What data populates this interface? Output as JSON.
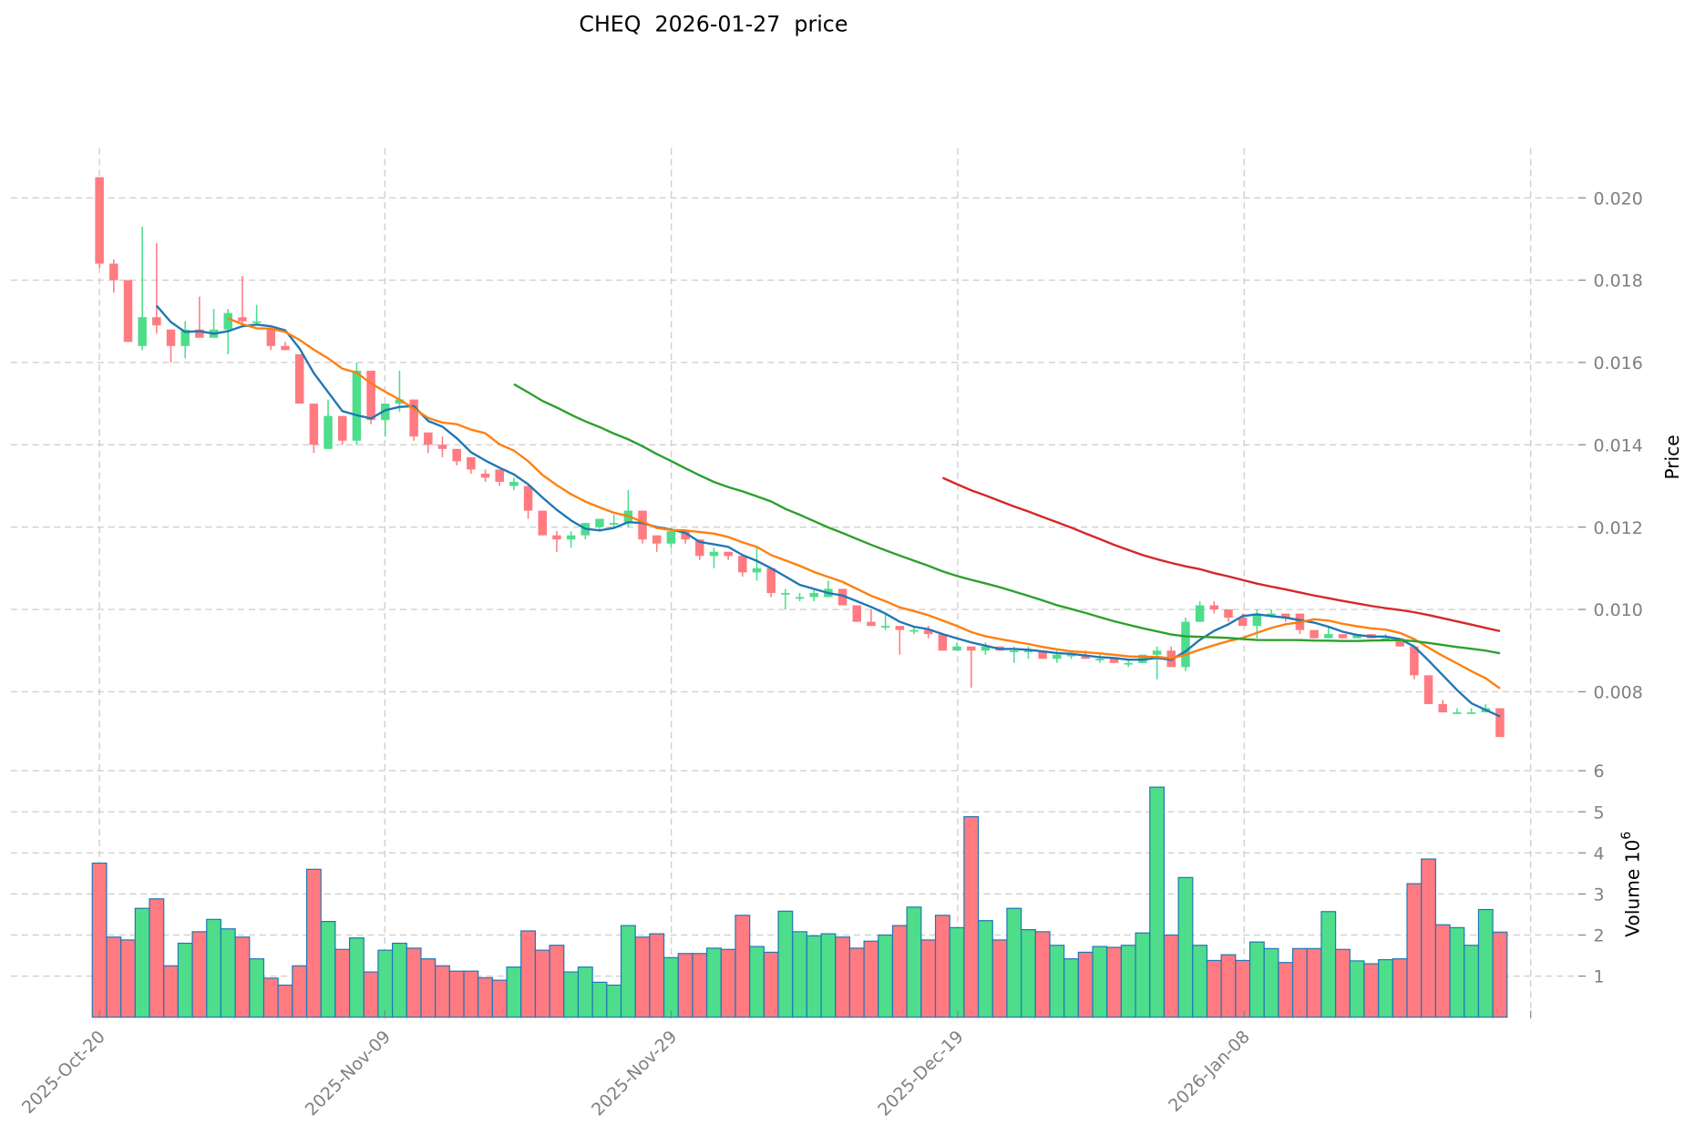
{
  "chart_data": {
    "type": "candlestick",
    "title": "CHEQ  2026-01-27  price",
    "ticker": "CHEQ",
    "date": "2026-01-27",
    "ylabel": "Price",
    "volume_label": "Volume  10^6",
    "ylim": [
      0.0068,
      0.0212
    ],
    "volume_ylim": [
      0,
      6
    ],
    "grid": true,
    "x_tick_labels": [
      "2025-Oct-20",
      "2025-Nov-09",
      "2025-Nov-29",
      "2025-Dec-19",
      "2026-Jan-08"
    ],
    "y_tick_labels": [
      "0.020",
      "0.018",
      "0.016",
      "0.014",
      "0.012",
      "0.010",
      "0.008"
    ],
    "volume_tick_labels": [
      "6",
      "5",
      "4",
      "3",
      "2",
      "1"
    ],
    "colors": {
      "up": "#4ddd8b",
      "down": "#ff7b81",
      "edge": "#1f77b4",
      "ma_blue": "#1f77b4",
      "ma_orange": "#ff7f0e",
      "ma_green": "#2ca02c",
      "ma_red": "#d62728"
    },
    "candles": [
      {
        "o": 0.0205,
        "h": 0.0205,
        "l": 0.0183,
        "c": 0.0184,
        "v": 3.75
      },
      {
        "o": 0.0184,
        "h": 0.0185,
        "l": 0.0177,
        "c": 0.018,
        "v": 1.95
      },
      {
        "o": 0.018,
        "h": 0.018,
        "l": 0.0165,
        "c": 0.0165,
        "v": 1.88
      },
      {
        "o": 0.0164,
        "h": 0.0193,
        "l": 0.0163,
        "c": 0.0171,
        "v": 2.65
      },
      {
        "o": 0.0171,
        "h": 0.0189,
        "l": 0.0167,
        "c": 0.0169,
        "v": 2.88
      },
      {
        "o": 0.0168,
        "h": 0.0168,
        "l": 0.016,
        "c": 0.0164,
        "v": 1.25
      },
      {
        "o": 0.0164,
        "h": 0.017,
        "l": 0.0161,
        "c": 0.0168,
        "v": 1.8
      },
      {
        "o": 0.0168,
        "h": 0.0176,
        "l": 0.0166,
        "c": 0.0166,
        "v": 2.08
      },
      {
        "o": 0.0166,
        "h": 0.0173,
        "l": 0.0166,
        "c": 0.0168,
        "v": 2.38
      },
      {
        "o": 0.0168,
        "h": 0.0173,
        "l": 0.0162,
        "c": 0.0172,
        "v": 2.15
      },
      {
        "o": 0.0171,
        "h": 0.0181,
        "l": 0.0169,
        "c": 0.017,
        "v": 1.95
      },
      {
        "o": 0.017,
        "h": 0.0174,
        "l": 0.0169,
        "c": 0.017,
        "v": 1.42
      },
      {
        "o": 0.0168,
        "h": 0.0168,
        "l": 0.0163,
        "c": 0.0164,
        "v": 0.95
      },
      {
        "o": 0.0164,
        "h": 0.0165,
        "l": 0.0163,
        "c": 0.0163,
        "v": 0.78
      },
      {
        "o": 0.0162,
        "h": 0.0162,
        "l": 0.015,
        "c": 0.015,
        "v": 1.25
      },
      {
        "o": 0.015,
        "h": 0.015,
        "l": 0.0138,
        "c": 0.014,
        "v": 3.6
      },
      {
        "o": 0.0139,
        "h": 0.0151,
        "l": 0.0139,
        "c": 0.0147,
        "v": 2.33
      },
      {
        "o": 0.0147,
        "h": 0.0147,
        "l": 0.014,
        "c": 0.0141,
        "v": 1.65
      },
      {
        "o": 0.0141,
        "h": 0.016,
        "l": 0.014,
        "c": 0.0158,
        "v": 1.93
      },
      {
        "o": 0.0158,
        "h": 0.0158,
        "l": 0.0145,
        "c": 0.0146,
        "v": 1.1
      },
      {
        "o": 0.0146,
        "h": 0.015,
        "l": 0.0142,
        "c": 0.015,
        "v": 1.63
      },
      {
        "o": 0.015,
        "h": 0.0158,
        "l": 0.0148,
        "c": 0.0151,
        "v": 1.8
      },
      {
        "o": 0.0151,
        "h": 0.0151,
        "l": 0.0141,
        "c": 0.0142,
        "v": 1.68
      },
      {
        "o": 0.0143,
        "h": 0.0143,
        "l": 0.0138,
        "c": 0.014,
        "v": 1.42
      },
      {
        "o": 0.014,
        "h": 0.0142,
        "l": 0.0137,
        "c": 0.0139,
        "v": 1.25
      },
      {
        "o": 0.0139,
        "h": 0.0139,
        "l": 0.0135,
        "c": 0.0136,
        "v": 1.12
      },
      {
        "o": 0.0137,
        "h": 0.0137,
        "l": 0.0133,
        "c": 0.0134,
        "v": 1.12
      },
      {
        "o": 0.0133,
        "h": 0.0134,
        "l": 0.0131,
        "c": 0.0132,
        "v": 0.96
      },
      {
        "o": 0.0134,
        "h": 0.0134,
        "l": 0.013,
        "c": 0.0131,
        "v": 0.9
      },
      {
        "o": 0.013,
        "h": 0.0132,
        "l": 0.0129,
        "c": 0.0131,
        "v": 1.22
      },
      {
        "o": 0.013,
        "h": 0.013,
        "l": 0.0122,
        "c": 0.0124,
        "v": 2.1
      },
      {
        "o": 0.0124,
        "h": 0.0124,
        "l": 0.0118,
        "c": 0.0118,
        "v": 1.63
      },
      {
        "o": 0.0118,
        "h": 0.0119,
        "l": 0.0114,
        "c": 0.0117,
        "v": 1.75
      },
      {
        "o": 0.0117,
        "h": 0.0119,
        "l": 0.0115,
        "c": 0.0118,
        "v": 1.1
      },
      {
        "o": 0.0118,
        "h": 0.0121,
        "l": 0.0117,
        "c": 0.0121,
        "v": 1.22
      },
      {
        "o": 0.012,
        "h": 0.0122,
        "l": 0.0119,
        "c": 0.0122,
        "v": 0.85
      },
      {
        "o": 0.0121,
        "h": 0.0123,
        "l": 0.012,
        "c": 0.0121,
        "v": 0.78
      },
      {
        "o": 0.0121,
        "h": 0.0129,
        "l": 0.012,
        "c": 0.0124,
        "v": 2.23
      },
      {
        "o": 0.0124,
        "h": 0.0124,
        "l": 0.0116,
        "c": 0.0117,
        "v": 1.95
      },
      {
        "o": 0.0118,
        "h": 0.0118,
        "l": 0.0114,
        "c": 0.0116,
        "v": 2.03
      },
      {
        "o": 0.0116,
        "h": 0.0119,
        "l": 0.0115,
        "c": 0.0119,
        "v": 1.45
      },
      {
        "o": 0.0119,
        "h": 0.0119,
        "l": 0.0116,
        "c": 0.0117,
        "v": 1.55
      },
      {
        "o": 0.0117,
        "h": 0.0117,
        "l": 0.0112,
        "c": 0.0113,
        "v": 1.55
      },
      {
        "o": 0.0113,
        "h": 0.0115,
        "l": 0.011,
        "c": 0.0114,
        "v": 1.68
      },
      {
        "o": 0.0114,
        "h": 0.0114,
        "l": 0.0112,
        "c": 0.0113,
        "v": 1.65
      },
      {
        "o": 0.0113,
        "h": 0.0113,
        "l": 0.0108,
        "c": 0.0109,
        "v": 2.48
      },
      {
        "o": 0.0109,
        "h": 0.0115,
        "l": 0.0107,
        "c": 0.011,
        "v": 1.72
      },
      {
        "o": 0.011,
        "h": 0.011,
        "l": 0.0103,
        "c": 0.0104,
        "v": 1.58
      },
      {
        "o": 0.0104,
        "h": 0.0105,
        "l": 0.01,
        "c": 0.0104,
        "v": 2.58
      },
      {
        "o": 0.0103,
        "h": 0.0104,
        "l": 0.0102,
        "c": 0.0103,
        "v": 2.08
      },
      {
        "o": 0.0103,
        "h": 0.0105,
        "l": 0.0102,
        "c": 0.0104,
        "v": 1.98
      },
      {
        "o": 0.0103,
        "h": 0.0107,
        "l": 0.0103,
        "c": 0.0105,
        "v": 2.03
      },
      {
        "o": 0.0105,
        "h": 0.0105,
        "l": 0.0101,
        "c": 0.0101,
        "v": 1.95
      },
      {
        "o": 0.0101,
        "h": 0.0101,
        "l": 0.0097,
        "c": 0.0097,
        "v": 1.68
      },
      {
        "o": 0.0097,
        "h": 0.01,
        "l": 0.0096,
        "c": 0.0096,
        "v": 1.85
      },
      {
        "o": 0.0096,
        "h": 0.0099,
        "l": 0.0095,
        "c": 0.0096,
        "v": 2.0
      },
      {
        "o": 0.0096,
        "h": 0.0096,
        "l": 0.0089,
        "c": 0.0095,
        "v": 2.23
      },
      {
        "o": 0.0095,
        "h": 0.0096,
        "l": 0.0094,
        "c": 0.0095,
        "v": 2.68
      },
      {
        "o": 0.0095,
        "h": 0.0096,
        "l": 0.0093,
        "c": 0.0094,
        "v": 1.88
      },
      {
        "o": 0.0094,
        "h": 0.0094,
        "l": 0.009,
        "c": 0.009,
        "v": 2.48
      },
      {
        "o": 0.009,
        "h": 0.0092,
        "l": 0.009,
        "c": 0.0091,
        "v": 2.18
      },
      {
        "o": 0.0091,
        "h": 0.0091,
        "l": 0.0081,
        "c": 0.009,
        "v": 4.88
      },
      {
        "o": 0.009,
        "h": 0.0092,
        "l": 0.0089,
        "c": 0.0091,
        "v": 2.35
      },
      {
        "o": 0.0091,
        "h": 0.0091,
        "l": 0.009,
        "c": 0.009,
        "v": 1.88
      },
      {
        "o": 0.009,
        "h": 0.0091,
        "l": 0.0087,
        "c": 0.009,
        "v": 2.65
      },
      {
        "o": 0.009,
        "h": 0.0091,
        "l": 0.0088,
        "c": 0.009,
        "v": 2.13
      },
      {
        "o": 0.009,
        "h": 0.009,
        "l": 0.0088,
        "c": 0.0088,
        "v": 2.08
      },
      {
        "o": 0.0088,
        "h": 0.009,
        "l": 0.0087,
        "c": 0.0089,
        "v": 1.75
      },
      {
        "o": 0.0089,
        "h": 0.0089,
        "l": 0.0088,
        "c": 0.0089,
        "v": 1.42
      },
      {
        "o": 0.0089,
        "h": 0.009,
        "l": 0.0088,
        "c": 0.0088,
        "v": 1.58
      },
      {
        "o": 0.0088,
        "h": 0.0089,
        "l": 0.0087,
        "c": 0.0088,
        "v": 1.72
      },
      {
        "o": 0.0088,
        "h": 0.0088,
        "l": 0.0087,
        "c": 0.0087,
        "v": 1.7
      },
      {
        "o": 0.0087,
        "h": 0.0088,
        "l": 0.0086,
        "c": 0.0087,
        "v": 1.75
      },
      {
        "o": 0.0087,
        "h": 0.0089,
        "l": 0.0087,
        "c": 0.0089,
        "v": 2.05
      },
      {
        "o": 0.0089,
        "h": 0.0091,
        "l": 0.0083,
        "c": 0.009,
        "v": 5.6
      },
      {
        "o": 0.009,
        "h": 0.0091,
        "l": 0.0086,
        "c": 0.0086,
        "v": 2.0
      },
      {
        "o": 0.0086,
        "h": 0.0098,
        "l": 0.0085,
        "c": 0.0097,
        "v": 3.4
      },
      {
        "o": 0.0097,
        "h": 0.0102,
        "l": 0.0097,
        "c": 0.0101,
        "v": 1.75
      },
      {
        "o": 0.0101,
        "h": 0.0102,
        "l": 0.0099,
        "c": 0.01,
        "v": 1.38
      },
      {
        "o": 0.01,
        "h": 0.01,
        "l": 0.0097,
        "c": 0.0098,
        "v": 1.52
      },
      {
        "o": 0.0098,
        "h": 0.0099,
        "l": 0.0096,
        "c": 0.0096,
        "v": 1.38
      },
      {
        "o": 0.0096,
        "h": 0.01,
        "l": 0.0093,
        "c": 0.0099,
        "v": 1.83
      },
      {
        "o": 0.0099,
        "h": 0.01,
        "l": 0.0098,
        "c": 0.0099,
        "v": 1.67
      },
      {
        "o": 0.0099,
        "h": 0.0099,
        "l": 0.0097,
        "c": 0.0098,
        "v": 1.33
      },
      {
        "o": 0.0099,
        "h": 0.0099,
        "l": 0.0094,
        "c": 0.0095,
        "v": 1.67
      },
      {
        "o": 0.0095,
        "h": 0.0095,
        "l": 0.0093,
        "c": 0.0093,
        "v": 1.67
      },
      {
        "o": 0.0093,
        "h": 0.0096,
        "l": 0.0093,
        "c": 0.0094,
        "v": 2.57
      },
      {
        "o": 0.0094,
        "h": 0.0094,
        "l": 0.0093,
        "c": 0.0093,
        "v": 1.65
      },
      {
        "o": 0.0093,
        "h": 0.0094,
        "l": 0.0093,
        "c": 0.0094,
        "v": 1.37
      },
      {
        "o": 0.0094,
        "h": 0.0094,
        "l": 0.0093,
        "c": 0.0093,
        "v": 1.3
      },
      {
        "o": 0.0093,
        "h": 0.0094,
        "l": 0.0093,
        "c": 0.0093,
        "v": 1.4
      },
      {
        "o": 0.0093,
        "h": 0.0093,
        "l": 0.0091,
        "c": 0.0091,
        "v": 1.42
      },
      {
        "o": 0.0091,
        "h": 0.0091,
        "l": 0.0083,
        "c": 0.0084,
        "v": 3.25
      },
      {
        "o": 0.0084,
        "h": 0.0084,
        "l": 0.0077,
        "c": 0.0077,
        "v": 3.85
      },
      {
        "o": 0.0077,
        "h": 0.0078,
        "l": 0.0075,
        "c": 0.0075,
        "v": 2.25
      },
      {
        "o": 0.0075,
        "h": 0.0076,
        "l": 0.0075,
        "c": 0.0075,
        "v": 2.18
      },
      {
        "o": 0.0075,
        "h": 0.0076,
        "l": 0.0075,
        "c": 0.0075,
        "v": 1.75
      },
      {
        "o": 0.0075,
        "h": 0.0077,
        "l": 0.0075,
        "c": 0.0076,
        "v": 2.62
      },
      {
        "o": 0.0076,
        "h": 0.0076,
        "l": 0.0069,
        "c": 0.0069,
        "v": 2.07
      }
    ],
    "moving_averages": [
      {
        "name": "MA blue (short)",
        "color": "#1f77b4",
        "start": 4
      },
      {
        "name": "MA orange",
        "color": "#ff7f0e",
        "start": 9
      },
      {
        "name": "MA green",
        "color": "#2ca02c",
        "start": 29
      },
      {
        "name": "MA red",
        "color": "#d62728",
        "start": 59
      }
    ]
  }
}
